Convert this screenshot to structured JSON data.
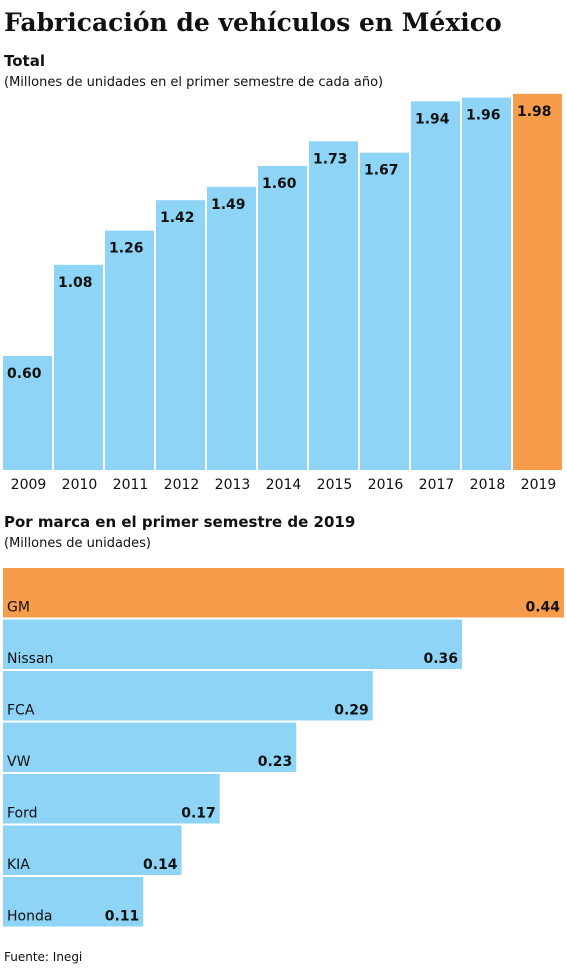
{
  "title": "Fabricación de vehículos en México",
  "source": "Fuente: Inegi",
  "chart_data": [
    {
      "type": "bar",
      "title": "Total",
      "subtitle": "(Millones de unidades en el primer semestre de cada año)",
      "categories": [
        "2009",
        "2010",
        "2011",
        "2012",
        "2013",
        "2014",
        "2015",
        "2016",
        "2017",
        "2018",
        "2019"
      ],
      "values": [
        0.6,
        1.08,
        1.26,
        1.42,
        1.49,
        1.6,
        1.73,
        1.67,
        1.94,
        1.96,
        1.98
      ],
      "value_labels": [
        "0.60",
        "1.08",
        "1.26",
        "1.42",
        "1.49",
        "1.60",
        "1.73",
        "1.67",
        "1.94",
        "1.96",
        "1.98"
      ],
      "colors": [
        "#8dd4f6",
        "#8dd4f6",
        "#8dd4f6",
        "#8dd4f6",
        "#8dd4f6",
        "#8dd4f6",
        "#8dd4f6",
        "#8dd4f6",
        "#8dd4f6",
        "#8dd4f6",
        "#f79c4b"
      ],
      "ylim": [
        0,
        2.0
      ]
    },
    {
      "type": "hbar",
      "title": "Por marca en el primer semestre de 2019",
      "subtitle": "(Millones de unidades)",
      "categories": [
        "GM",
        "Nissan",
        "FCA",
        "VW",
        "Ford",
        "KIA",
        "Honda"
      ],
      "values": [
        0.44,
        0.36,
        0.29,
        0.23,
        0.17,
        0.14,
        0.11
      ],
      "colors": [
        "#f79c4b",
        "#8dd4f6",
        "#8dd4f6",
        "#8dd4f6",
        "#8dd4f6",
        "#8dd4f6",
        "#8dd4f6"
      ],
      "xlim": [
        0,
        0.44
      ]
    }
  ]
}
